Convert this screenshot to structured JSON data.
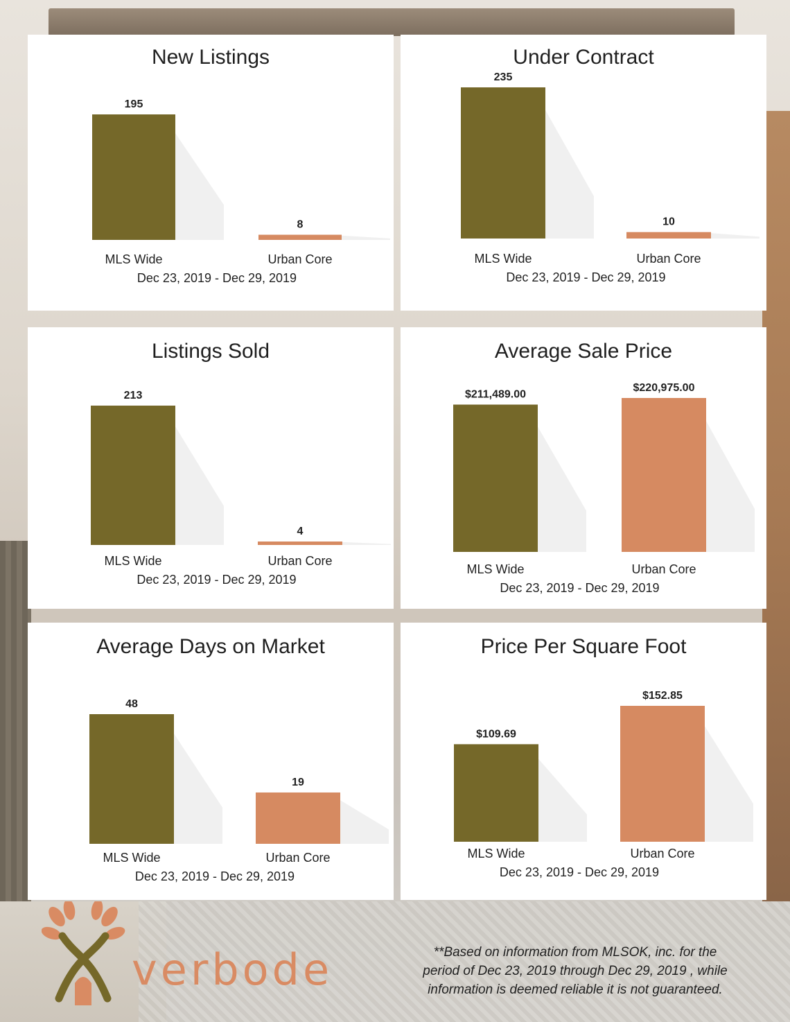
{
  "colors": {
    "mls": "#756829",
    "urban": "#d68a61",
    "logo": "#d98b63"
  },
  "charts": [
    {
      "title": "New Listings",
      "categories": [
        "MLS Wide",
        "Urban Core"
      ],
      "values": [
        195,
        8
      ],
      "value_labels": [
        "195",
        "8"
      ],
      "date_range": "Dec 23, 2019 - Dec 29, 2019"
    },
    {
      "title": "Under Contract",
      "categories": [
        "MLS Wide",
        "Urban Core"
      ],
      "values": [
        235,
        10
      ],
      "value_labels": [
        "235",
        "10"
      ],
      "date_range": "Dec 23, 2019 - Dec 29, 2019"
    },
    {
      "title": "Listings Sold",
      "categories": [
        "MLS Wide",
        "Urban Core"
      ],
      "values": [
        213,
        4
      ],
      "value_labels": [
        "213",
        "4"
      ],
      "date_range": "Dec 23, 2019 - Dec 29, 2019"
    },
    {
      "title": "Average Sale Price",
      "categories": [
        "MLS Wide",
        "Urban Core"
      ],
      "values": [
        211489,
        220975
      ],
      "value_labels": [
        "$211,489.00",
        "$220,975.00"
      ],
      "date_range": "Dec 23, 2019 - Dec 29, 2019"
    },
    {
      "title": "Average Days on Market",
      "categories": [
        "MLS Wide",
        "Urban Core"
      ],
      "values": [
        48,
        19
      ],
      "value_labels": [
        "48",
        "19"
      ],
      "date_range": "Dec 23, 2019 - Dec 29, 2019"
    },
    {
      "title": "Price Per Square Foot",
      "categories": [
        "MLS Wide",
        "Urban Core"
      ],
      "values": [
        109.69,
        152.85
      ],
      "value_labels": [
        "$109.69",
        "$152.85"
      ],
      "date_range": "Dec 23, 2019 - Dec 29, 2019"
    }
  ],
  "chart_data": [
    {
      "type": "bar",
      "title": "New Listings",
      "categories": [
        "MLS Wide",
        "Urban Core"
      ],
      "values": [
        195,
        8
      ],
      "xlabel": "Dec 23, 2019 - Dec 29, 2019",
      "ylabel": "",
      "grid": false,
      "legend": "none"
    },
    {
      "type": "bar",
      "title": "Under Contract",
      "categories": [
        "MLS Wide",
        "Urban Core"
      ],
      "values": [
        235,
        10
      ],
      "xlabel": "Dec 23, 2019 - Dec 29, 2019",
      "ylabel": "",
      "grid": false,
      "legend": "none"
    },
    {
      "type": "bar",
      "title": "Listings Sold",
      "categories": [
        "MLS Wide",
        "Urban Core"
      ],
      "values": [
        213,
        4
      ],
      "xlabel": "Dec 23, 2019 - Dec 29, 2019",
      "ylabel": "",
      "grid": false,
      "legend": "none"
    },
    {
      "type": "bar",
      "title": "Average Sale Price",
      "categories": [
        "MLS Wide",
        "Urban Core"
      ],
      "values": [
        211489.0,
        220975.0
      ],
      "xlabel": "Dec 23, 2019 - Dec 29, 2019",
      "ylabel": "",
      "grid": false,
      "legend": "none"
    },
    {
      "type": "bar",
      "title": "Average Days on Market",
      "categories": [
        "MLS Wide",
        "Urban Core"
      ],
      "values": [
        48,
        19
      ],
      "xlabel": "Dec 23, 2019 - Dec 29, 2019",
      "ylabel": "",
      "grid": false,
      "legend": "none"
    },
    {
      "type": "bar",
      "title": "Price Per Square Foot",
      "categories": [
        "MLS Wide",
        "Urban Core"
      ],
      "values": [
        109.69,
        152.85
      ],
      "xlabel": "Dec 23, 2019 - Dec 29, 2019",
      "ylabel": "",
      "grid": false,
      "legend": "none"
    }
  ],
  "logo": {
    "wordmark": "verbode",
    "icon": "wheat-house-logo-icon"
  },
  "footnote": {
    "line1": "**Based on information from MLSOK, inc. for the",
    "line2": "period of Dec 23, 2019 through Dec 29, 2019 , while",
    "line3": "information is deemed reliable it is not guaranteed."
  }
}
